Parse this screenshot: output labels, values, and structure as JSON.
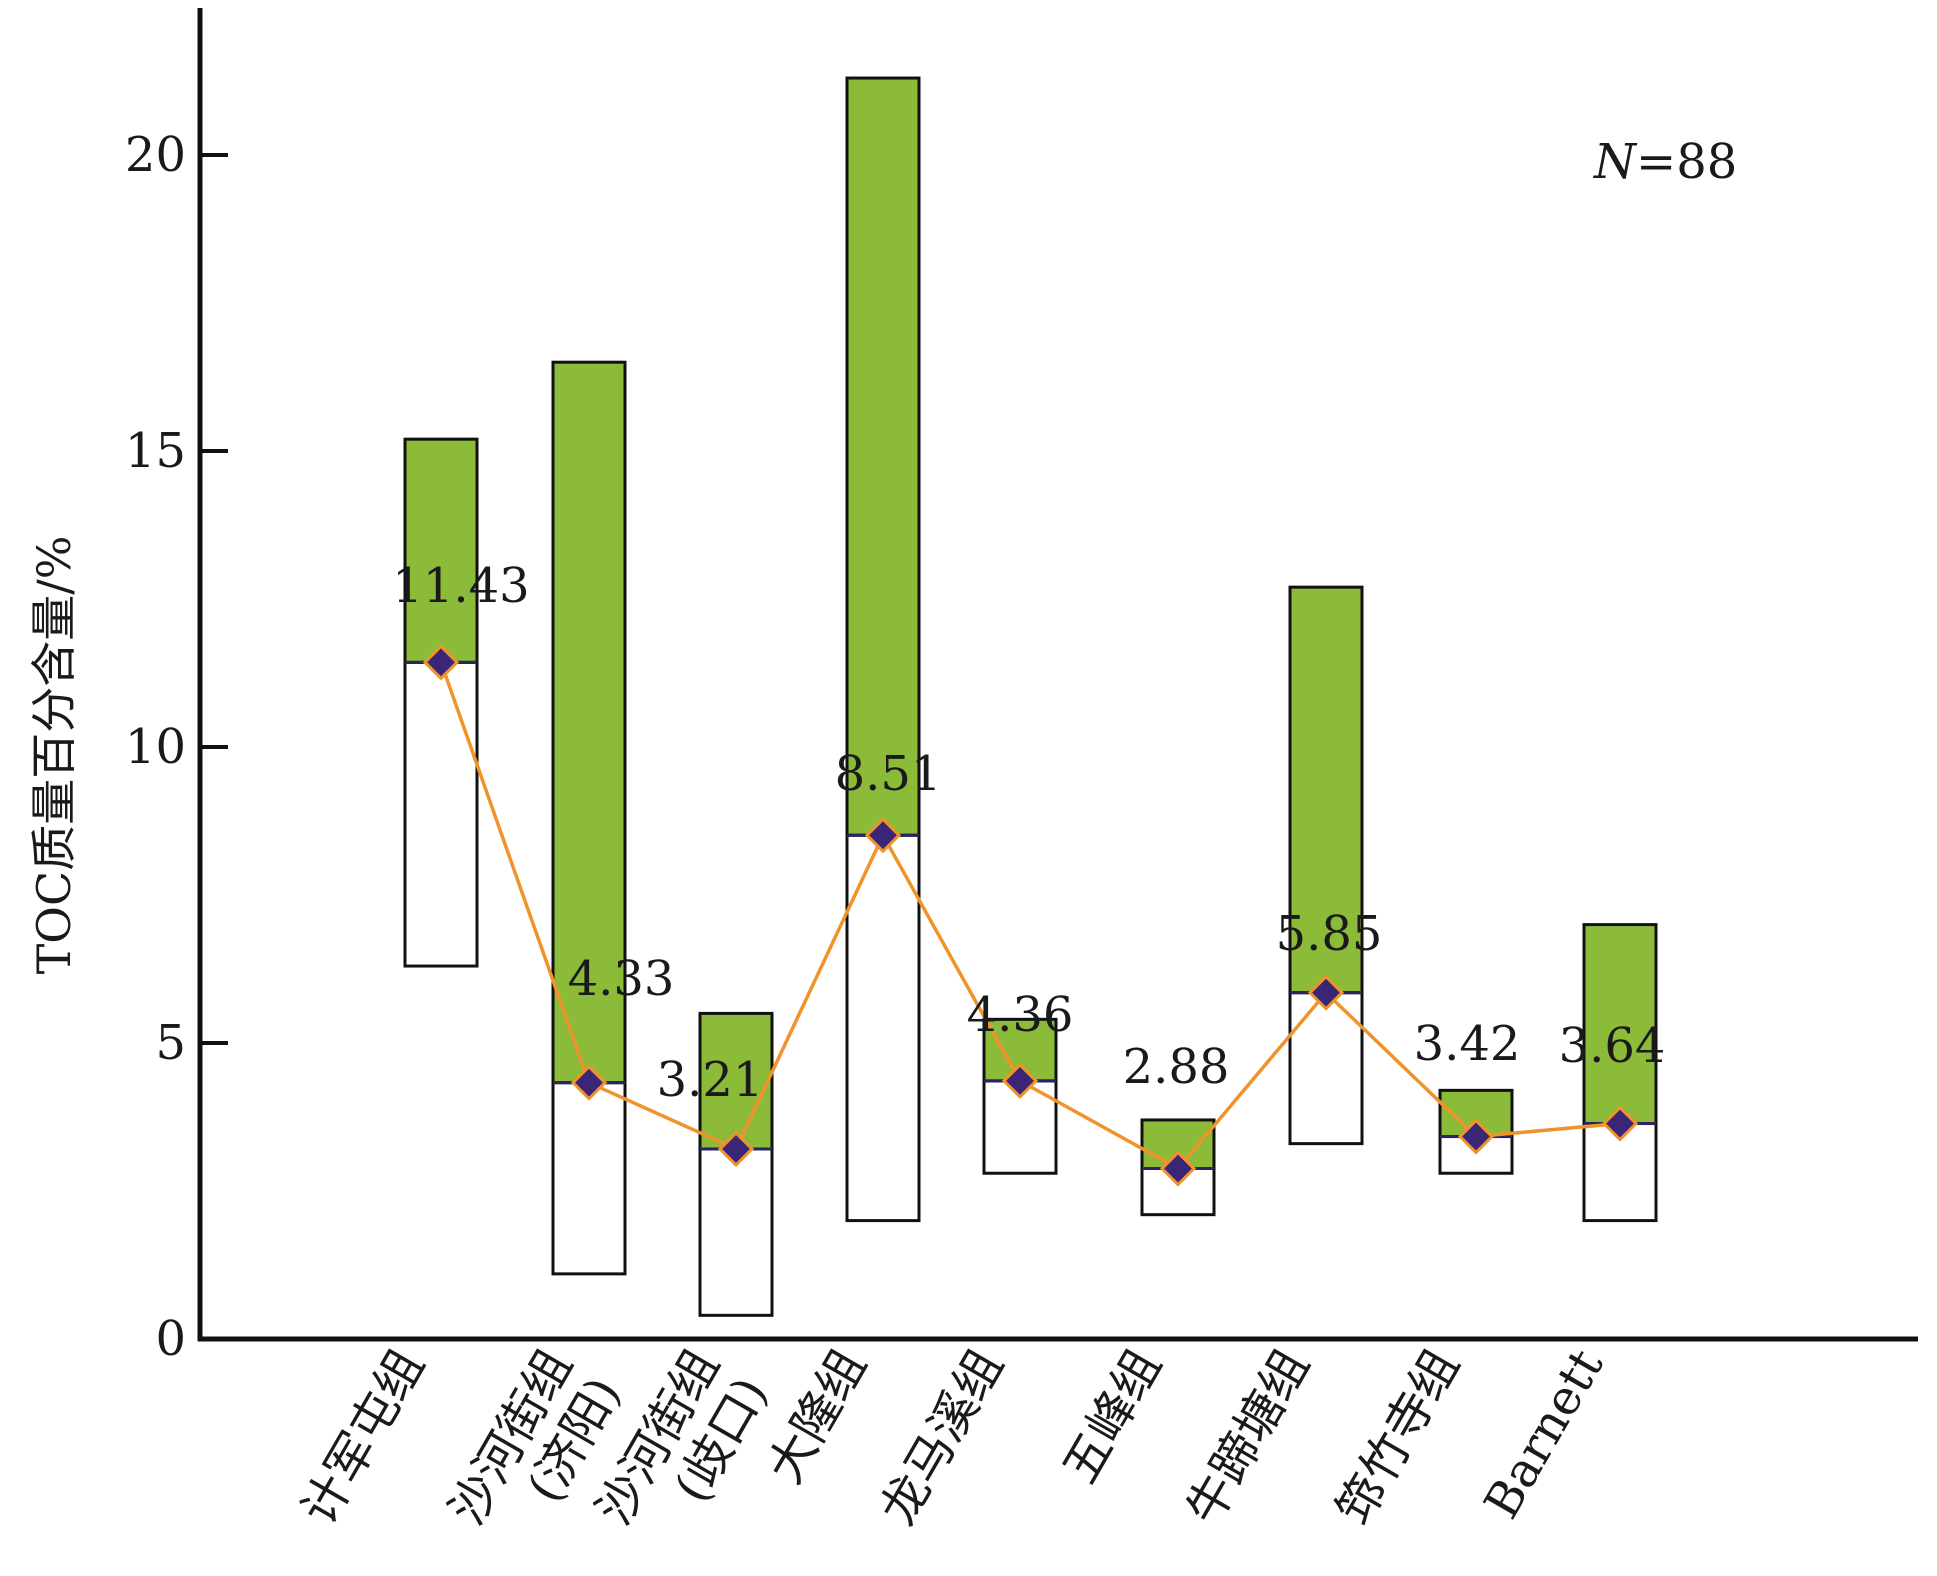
{
  "chart_data": {
    "type": "bar",
    "ylabel": "TOC质量百分含量/%",
    "ylim": [
      0,
      22.5
    ],
    "yticks": [
      0,
      5,
      10,
      15,
      20
    ],
    "grid": false,
    "annotation": {
      "prefix": "N",
      "text": "=88"
    },
    "colors": {
      "upper_range": "#8cbb3a",
      "lower_range": "#ffffff",
      "line": "#f0932b",
      "marker_fill": "#3b2577",
      "marker_stroke": "#f0932b",
      "outline": "#111111"
    },
    "categories": [
      [
        "计军屯组"
      ],
      [
        "沙河街组",
        "(济阳)"
      ],
      [
        "沙河街组",
        "(歧口)"
      ],
      [
        "大隆组"
      ],
      [
        "龙马溪组"
      ],
      [
        "五峰组"
      ],
      [
        "牛蹄塘组"
      ],
      [
        "筇竹寺组"
      ],
      [
        "Barnett"
      ]
    ],
    "series": [
      {
        "values": [
          6.3,
          1.1,
          0.4,
          2.0,
          2.8,
          2.1,
          3.3,
          2.8,
          2.0
        ]
      },
      {
        "values": [
          11.43,
          4.33,
          3.21,
          8.51,
          4.36,
          2.88,
          5.85,
          3.42,
          3.64
        ]
      },
      {
        "values": [
          15.2,
          16.5,
          5.5,
          21.3,
          5.4,
          3.7,
          12.7,
          4.2,
          7.0
        ]
      }
    ],
    "value_labels": [
      "11.43",
      "4.33",
      "3.21",
      "8.51",
      "4.36",
      "2.88",
      "5.85",
      "3.42",
      "3.64"
    ]
  }
}
